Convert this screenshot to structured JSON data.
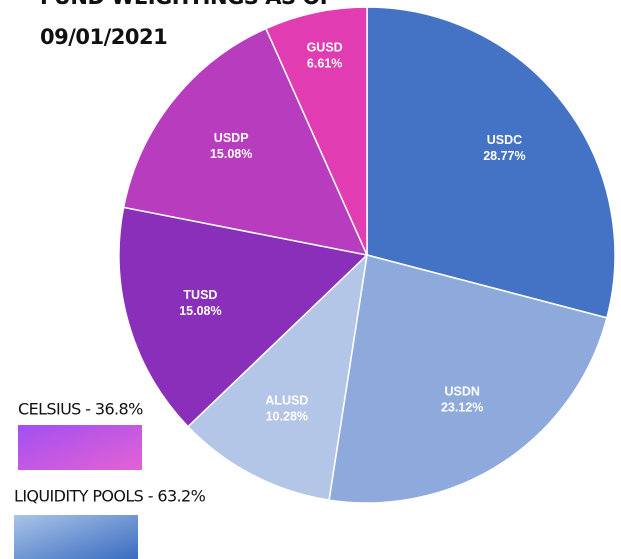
{
  "chart_data": {
    "type": "pie",
    "title": "FUND WEIGHTINGS AS OF",
    "subtitle": "09/01/2021",
    "categories": [
      "USDC",
      "USDN",
      "ALUSD",
      "TUSD",
      "USDP",
      "GUSD"
    ],
    "values": [
      28.77,
      23.12,
      10.28,
      15.08,
      15.08,
      6.61
    ],
    "value_labels": [
      "28.77%",
      "23.12%",
      "10.28%",
      "15.08%",
      "15.08%",
      "6.61%"
    ],
    "colors": [
      "#4472c4",
      "#8eaadc",
      "#b4c6e7",
      "#8a2fba",
      "#b83cbe",
      "#e23cb2"
    ],
    "groups": [
      {
        "label": "CELSIUS - 36.8%"
      },
      {
        "label": "LIQUIDITY POOLS - 63.2%"
      }
    ]
  }
}
